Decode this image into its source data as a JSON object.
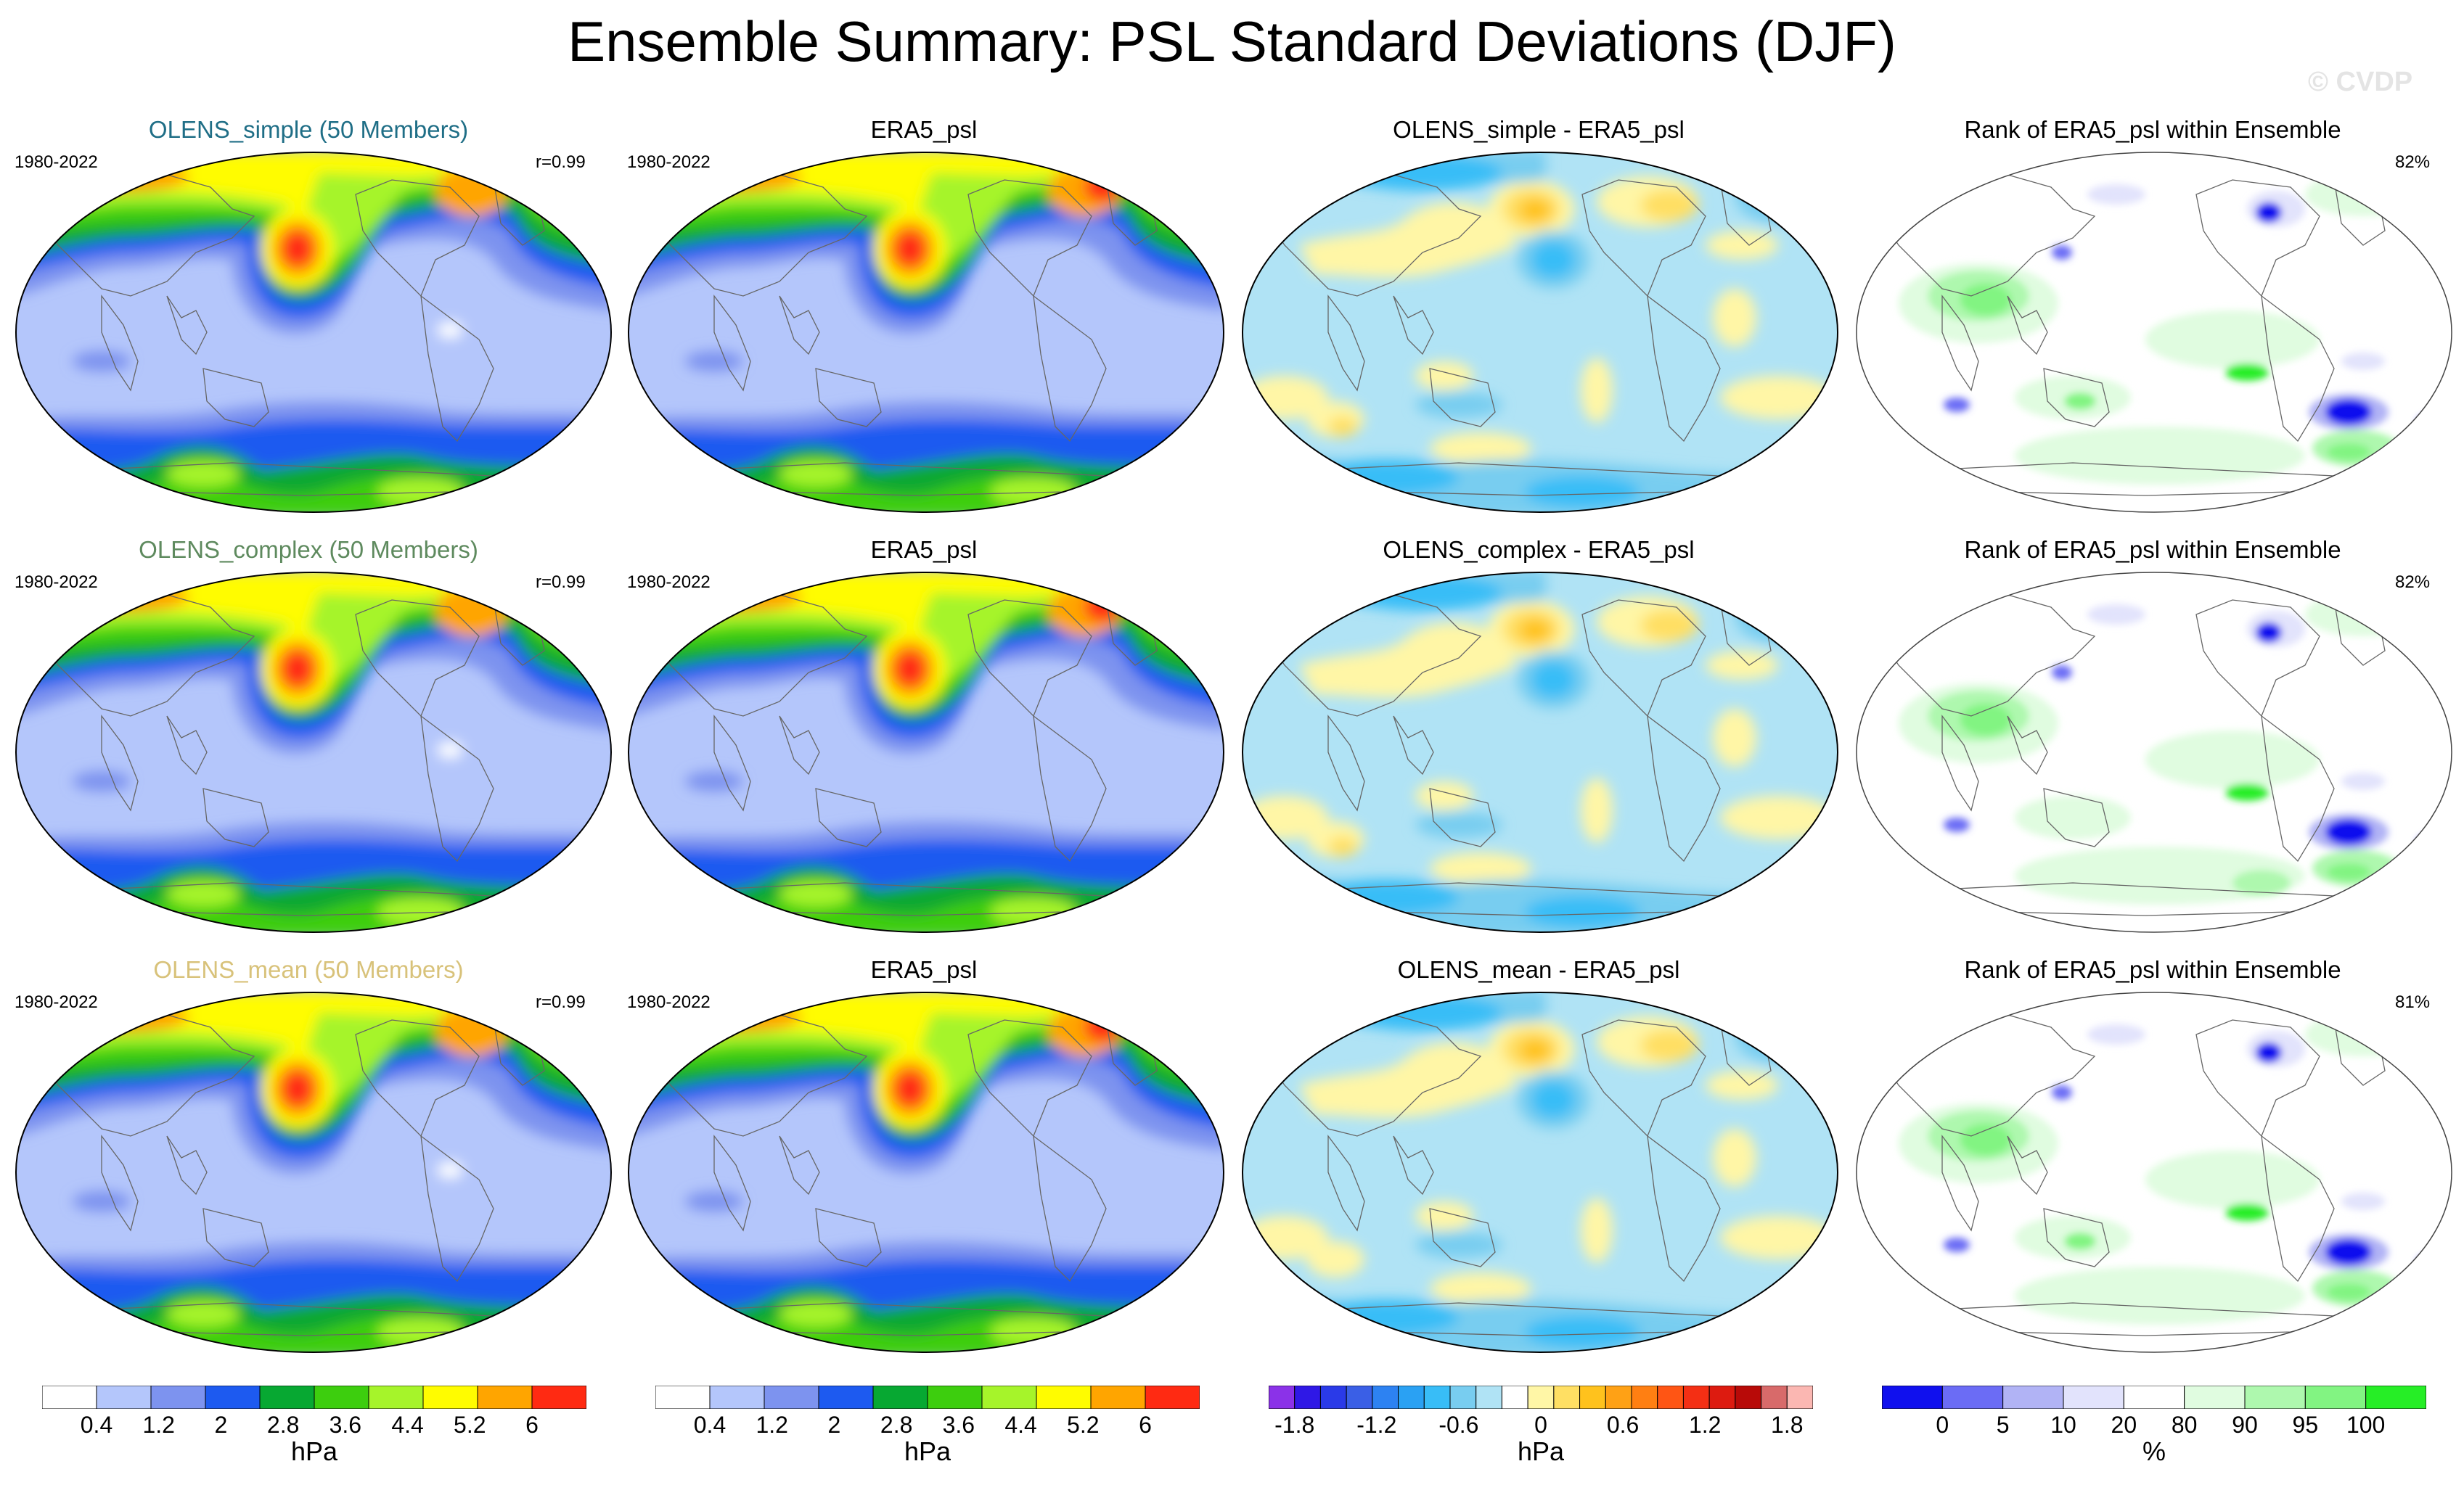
{
  "title": "Ensemble Summary: PSL Standard Deviations (DJF)",
  "watermark": "© CVDP",
  "rows": [
    {
      "member": {
        "title": "OLENS_simple (50 Members)",
        "title_color": "#1f6e86",
        "years": "1980-2022",
        "stat": "r=0.99"
      },
      "obs": {
        "title": "ERA5_psl",
        "years": "1980-2022"
      },
      "diff": {
        "title": "OLENS_simple - ERA5_psl"
      },
      "rank": {
        "title": "Rank of ERA5_psl within Ensemble",
        "pct": "82%"
      }
    },
    {
      "member": {
        "title": "OLENS_complex (50 Members)",
        "title_color": "#5e8a5e",
        "years": "1980-2022",
        "stat": "r=0.99"
      },
      "obs": {
        "title": "ERA5_psl",
        "years": "1980-2022"
      },
      "diff": {
        "title": "OLENS_complex - ERA5_psl"
      },
      "rank": {
        "title": "Rank of ERA5_psl within Ensemble",
        "pct": "82%"
      }
    },
    {
      "member": {
        "title": "OLENS_mean (50 Members)",
        "title_color": "#d8c27a",
        "years": "1980-2022",
        "stat": "r=0.99"
      },
      "obs": {
        "title": "ERA5_psl",
        "years": "1980-2022"
      },
      "diff": {
        "title": "OLENS_mean - ERA5_psl"
      },
      "rank": {
        "title": "Rank of ERA5_psl within Ensemble",
        "pct": "81%"
      }
    }
  ],
  "colorbars": {
    "sd": {
      "colors": [
        "#ffffff",
        "#b4c6fb",
        "#7d93ef",
        "#1d5af0",
        "#07a832",
        "#3dce0e",
        "#a6f42a",
        "#fffc00",
        "#ffa500",
        "#ff2a12"
      ],
      "labels": [
        "0.4",
        "1.2",
        "2",
        "2.8",
        "3.6",
        "4.4",
        "5.2",
        "6"
      ],
      "unit": "hPa"
    },
    "diff": {
      "colors": [
        "#8b32e8",
        "#2f18e6",
        "#2a3ae8",
        "#3a5fe6",
        "#2d82f2",
        "#2aa1f3",
        "#38bdf7",
        "#78cdf0",
        "#b0e3f5",
        "#ffffff",
        "#fff6a6",
        "#ffdf63",
        "#ffc21d",
        "#ffa115",
        "#ff7f12",
        "#ff5514",
        "#f42f14",
        "#dd1b10",
        "#b80a08",
        "#d86a6a",
        "#fbb7b2"
      ],
      "labels": [
        "-1.8",
        "-1.2",
        "-0.6",
        "0",
        "0.6",
        "1.2",
        "1.8"
      ],
      "unit": "hPa"
    },
    "rank": {
      "colors": [
        "#1010ee",
        "#6b6cf5",
        "#b1b3f5",
        "#e2e3fc",
        "#ffffff",
        "#e0fce0",
        "#aef8ae",
        "#82f482",
        "#26ee26"
      ],
      "labels": [
        "0",
        "5",
        "10",
        "20",
        "80",
        "90",
        "95",
        "100"
      ],
      "unit": "%"
    }
  }
}
